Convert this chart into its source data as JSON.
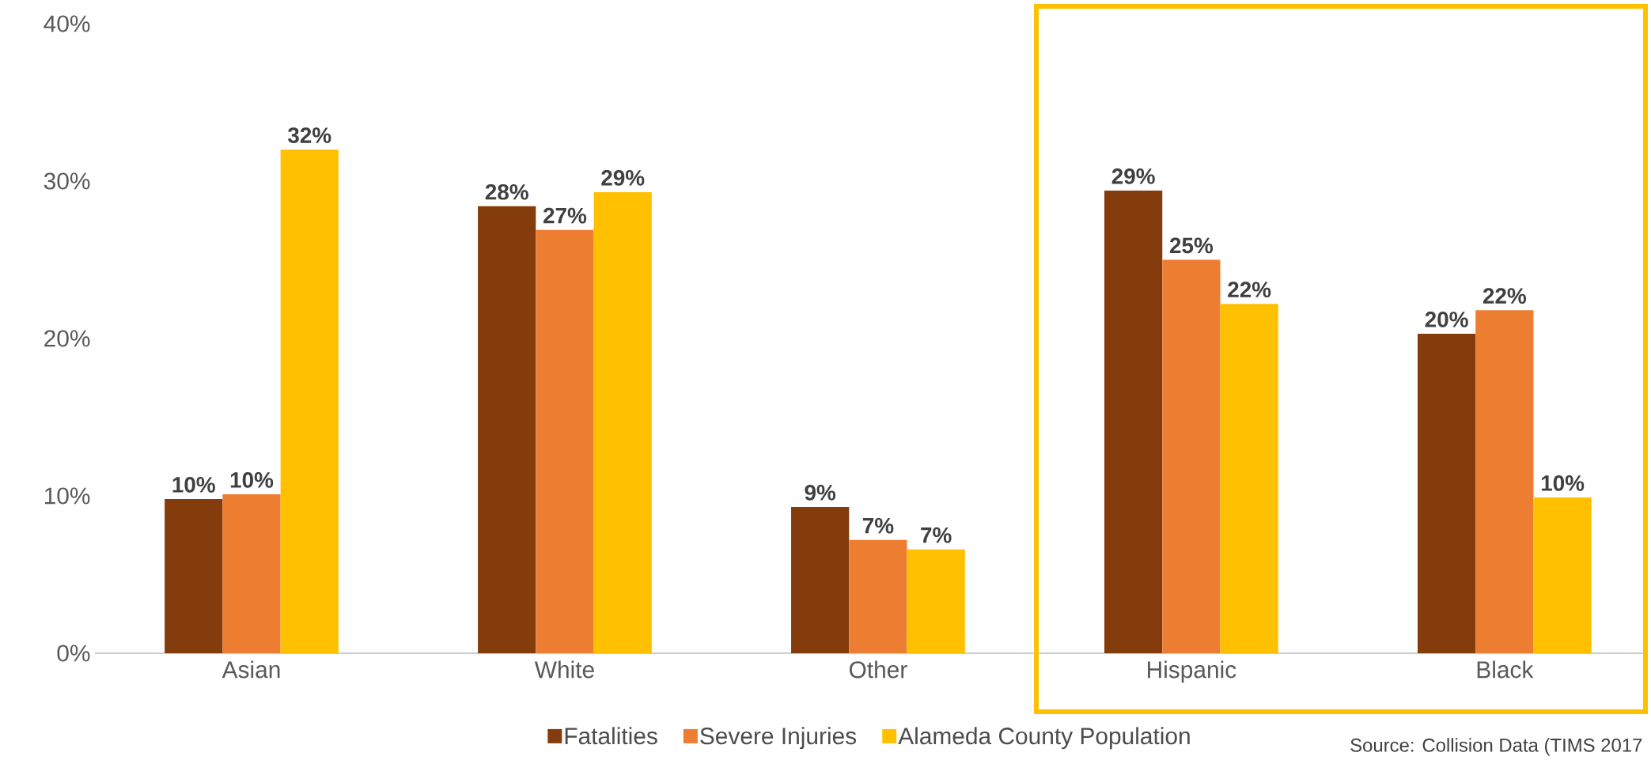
{
  "chart_data": {
    "type": "bar",
    "categories": [
      "Asian",
      "White",
      "Other",
      "Hispanic",
      "Black"
    ],
    "series": [
      {
        "name": "Fatalities",
        "color": "#843c0c",
        "values": [
          9.8,
          28.4,
          9.3,
          29.4,
          20.3
        ],
        "value_labels": [
          "10%",
          "28%",
          "9%",
          "29%",
          "20%"
        ]
      },
      {
        "name": "Severe Injuries",
        "color": "#ed7d31",
        "values": [
          10.1,
          26.9,
          7.2,
          25.0,
          21.8
        ],
        "value_labels": [
          "10%",
          "27%",
          "7%",
          "25%",
          "22%"
        ]
      },
      {
        "name": "Alameda County Population",
        "color": "#ffc000",
        "values": [
          32.0,
          29.3,
          6.6,
          22.2,
          9.9
        ],
        "value_labels": [
          "32%",
          "29%",
          "7%",
          "22%",
          "10%"
        ]
      }
    ],
    "ylim": [
      0,
      40
    ],
    "yticks": [
      {
        "value": 0,
        "label": "0%"
      },
      {
        "value": 10,
        "label": "10%"
      },
      {
        "value": 20,
        "label": "20%"
      },
      {
        "value": 30,
        "label": "30%"
      },
      {
        "value": 40,
        "label": "40%"
      }
    ],
    "annotations": [
      "Source: Collision Data (TIMS 2017"
    ],
    "legend": "bottom"
  }
}
